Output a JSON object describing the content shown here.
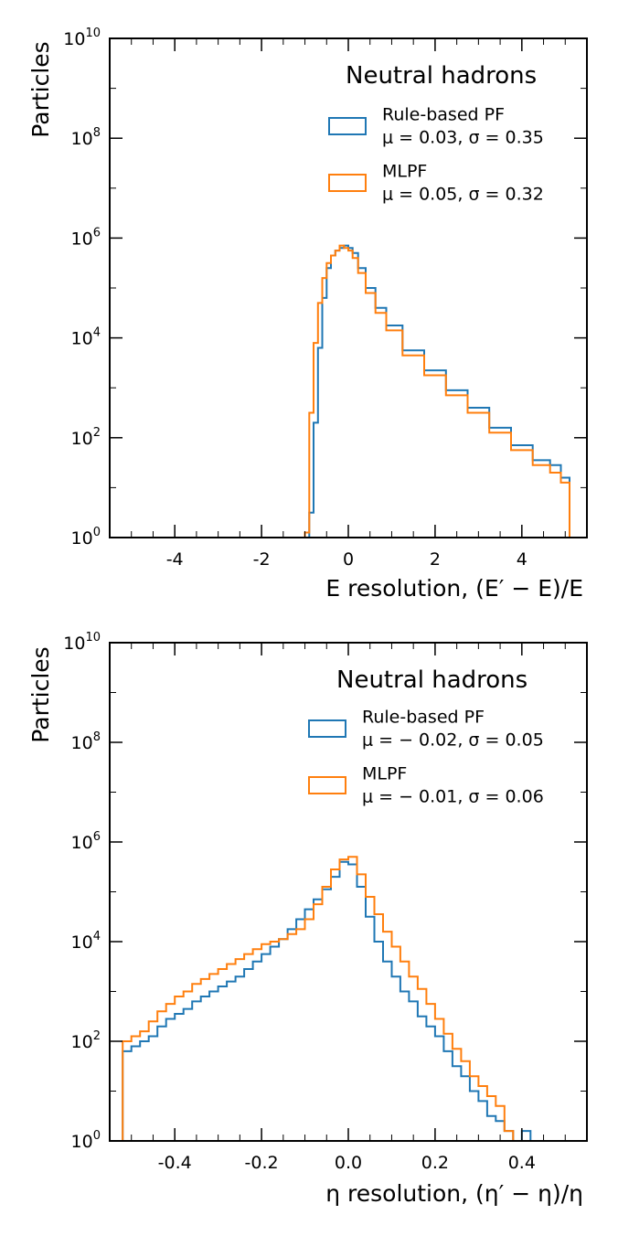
{
  "colors": {
    "rule_based": "#1f77b4",
    "mlpf": "#ff7f0e"
  },
  "chart_data": [
    {
      "type": "histogram",
      "xlabel": "E resolution, (E′ − E)/E",
      "ylabel": "Particles",
      "xlim": [
        -5.5,
        5.5
      ],
      "ylim_log10": [
        0,
        10
      ],
      "log_y": true,
      "xticks": [
        -4,
        -2,
        0,
        2,
        4
      ],
      "xtick_labels": [
        "-4",
        "-2",
        "0",
        "2",
        "4"
      ],
      "yticks_log10": [
        0,
        2,
        4,
        6,
        8,
        10
      ],
      "yticks_base": "10",
      "yticks_exponent": [
        "0",
        "2",
        "4",
        "6",
        "8",
        "10"
      ],
      "grid": false,
      "legend_position": "top-right",
      "legend_title": "Neutral hadrons",
      "series": [
        {
          "name": "Rule-based PF",
          "stats": "μ = 0.03,  σ = 0.35",
          "log10_counts": [
            [
              -0.95,
              -0.5
            ],
            [
              -0.85,
              0.5
            ],
            [
              -0.75,
              2.3
            ],
            [
              -0.65,
              3.8
            ],
            [
              -0.55,
              4.8
            ],
            [
              -0.45,
              5.4
            ],
            [
              -0.35,
              5.65
            ],
            [
              -0.25,
              5.75
            ],
            [
              -0.15,
              5.8
            ],
            [
              -0.05,
              5.85
            ],
            [
              0.05,
              5.8
            ],
            [
              0.15,
              5.7
            ],
            [
              0.3,
              5.4
            ],
            [
              0.5,
              5.0
            ],
            [
              0.75,
              4.6
            ],
            [
              1.0,
              4.25
            ],
            [
              1.5,
              3.75
            ],
            [
              2.0,
              3.35
            ],
            [
              2.5,
              2.95
            ],
            [
              3.0,
              2.6
            ],
            [
              3.5,
              2.2
            ],
            [
              4.0,
              1.85
            ],
            [
              4.5,
              1.55
            ],
            [
              4.8,
              1.45
            ],
            [
              5.0,
              1.2
            ]
          ]
        },
        {
          "name": "MLPF",
          "stats": "μ = 0.05,  σ = 0.32",
          "log10_counts": [
            [
              -0.95,
              0.1
            ],
            [
              -0.85,
              2.5
            ],
            [
              -0.75,
              3.9
            ],
            [
              -0.65,
              4.7
            ],
            [
              -0.55,
              5.2
            ],
            [
              -0.45,
              5.5
            ],
            [
              -0.35,
              5.65
            ],
            [
              -0.25,
              5.75
            ],
            [
              -0.15,
              5.85
            ],
            [
              -0.05,
              5.8
            ],
            [
              0.05,
              5.75
            ],
            [
              0.15,
              5.6
            ],
            [
              0.3,
              5.3
            ],
            [
              0.5,
              4.9
            ],
            [
              0.75,
              4.5
            ],
            [
              1.0,
              4.15
            ],
            [
              1.5,
              3.65
            ],
            [
              2.0,
              3.25
            ],
            [
              2.5,
              2.85
            ],
            [
              3.0,
              2.5
            ],
            [
              3.5,
              2.1
            ],
            [
              4.0,
              1.75
            ],
            [
              4.5,
              1.45
            ],
            [
              4.8,
              1.3
            ],
            [
              5.0,
              1.1
            ]
          ]
        }
      ]
    },
    {
      "type": "histogram",
      "xlabel": "η resolution, (η′ − η)/η",
      "ylabel": "Particles",
      "xlim": [
        -0.55,
        0.55
      ],
      "ylim_log10": [
        0,
        10
      ],
      "log_y": true,
      "xticks": [
        -0.4,
        -0.2,
        0.0,
        0.2,
        0.4
      ],
      "xtick_labels": [
        "-0.4",
        "-0.2",
        "0.0",
        "0.2",
        "0.4"
      ],
      "yticks_log10": [
        0,
        2,
        4,
        6,
        8,
        10
      ],
      "yticks_base": "10",
      "yticks_exponent": [
        "0",
        "2",
        "4",
        "6",
        "8",
        "10"
      ],
      "grid": false,
      "legend_position": "top-right",
      "legend_title": "Neutral hadrons",
      "series": [
        {
          "name": "Rule-based PF",
          "stats": "μ = − 0.02,  σ = 0.05",
          "log10_counts": [
            [
              -0.51,
              1.8
            ],
            [
              -0.49,
              1.9
            ],
            [
              -0.47,
              2.0
            ],
            [
              -0.45,
              2.1
            ],
            [
              -0.43,
              2.3
            ],
            [
              -0.41,
              2.45
            ],
            [
              -0.39,
              2.55
            ],
            [
              -0.37,
              2.65
            ],
            [
              -0.35,
              2.8
            ],
            [
              -0.33,
              2.9
            ],
            [
              -0.31,
              3.0
            ],
            [
              -0.29,
              3.1
            ],
            [
              -0.27,
              3.2
            ],
            [
              -0.25,
              3.3
            ],
            [
              -0.23,
              3.45
            ],
            [
              -0.21,
              3.6
            ],
            [
              -0.19,
              3.75
            ],
            [
              -0.17,
              3.9
            ],
            [
              -0.15,
              4.05
            ],
            [
              -0.13,
              4.25
            ],
            [
              -0.11,
              4.45
            ],
            [
              -0.09,
              4.65
            ],
            [
              -0.07,
              4.85
            ],
            [
              -0.05,
              5.05
            ],
            [
              -0.03,
              5.3
            ],
            [
              -0.01,
              5.6
            ],
            [
              0.01,
              5.55
            ],
            [
              0.03,
              5.1
            ],
            [
              0.05,
              4.5
            ],
            [
              0.07,
              4.0
            ],
            [
              0.09,
              3.6
            ],
            [
              0.11,
              3.3
            ],
            [
              0.13,
              3.0
            ],
            [
              0.15,
              2.8
            ],
            [
              0.17,
              2.5
            ],
            [
              0.19,
              2.3
            ],
            [
              0.21,
              2.1
            ],
            [
              0.23,
              1.8
            ],
            [
              0.25,
              1.5
            ],
            [
              0.27,
              1.3
            ],
            [
              0.29,
              1.0
            ],
            [
              0.31,
              0.8
            ],
            [
              0.33,
              0.5
            ],
            [
              0.35,
              0.4
            ],
            [
              0.37,
              0.2
            ],
            [
              0.39,
              0.0
            ],
            [
              0.41,
              0.2
            ],
            [
              0.43,
              -0.5
            ]
          ]
        },
        {
          "name": "MLPF",
          "stats": "μ = − 0.01,  σ = 0.06",
          "log10_counts": [
            [
              -0.51,
              2.0
            ],
            [
              -0.49,
              2.1
            ],
            [
              -0.47,
              2.2
            ],
            [
              -0.45,
              2.4
            ],
            [
              -0.43,
              2.6
            ],
            [
              -0.41,
              2.75
            ],
            [
              -0.39,
              2.9
            ],
            [
              -0.37,
              3.0
            ],
            [
              -0.35,
              3.15
            ],
            [
              -0.33,
              3.25
            ],
            [
              -0.31,
              3.35
            ],
            [
              -0.29,
              3.45
            ],
            [
              -0.27,
              3.55
            ],
            [
              -0.25,
              3.65
            ],
            [
              -0.23,
              3.75
            ],
            [
              -0.21,
              3.85
            ],
            [
              -0.19,
              3.95
            ],
            [
              -0.17,
              4.0
            ],
            [
              -0.15,
              4.05
            ],
            [
              -0.13,
              4.15
            ],
            [
              -0.11,
              4.25
            ],
            [
              -0.09,
              4.45
            ],
            [
              -0.07,
              4.75
            ],
            [
              -0.05,
              5.1
            ],
            [
              -0.03,
              5.45
            ],
            [
              -0.01,
              5.65
            ],
            [
              0.01,
              5.7
            ],
            [
              0.03,
              5.35
            ],
            [
              0.05,
              4.9
            ],
            [
              0.07,
              4.55
            ],
            [
              0.09,
              4.2
            ],
            [
              0.11,
              3.9
            ],
            [
              0.13,
              3.6
            ],
            [
              0.15,
              3.3
            ],
            [
              0.17,
              3.05
            ],
            [
              0.19,
              2.75
            ],
            [
              0.21,
              2.45
            ],
            [
              0.23,
              2.15
            ],
            [
              0.25,
              1.85
            ],
            [
              0.27,
              1.6
            ],
            [
              0.29,
              1.3
            ],
            [
              0.31,
              1.1
            ],
            [
              0.33,
              0.9
            ],
            [
              0.35,
              0.7
            ],
            [
              0.37,
              0.2
            ],
            [
              0.39,
              -0.5
            ]
          ]
        }
      ]
    }
  ]
}
